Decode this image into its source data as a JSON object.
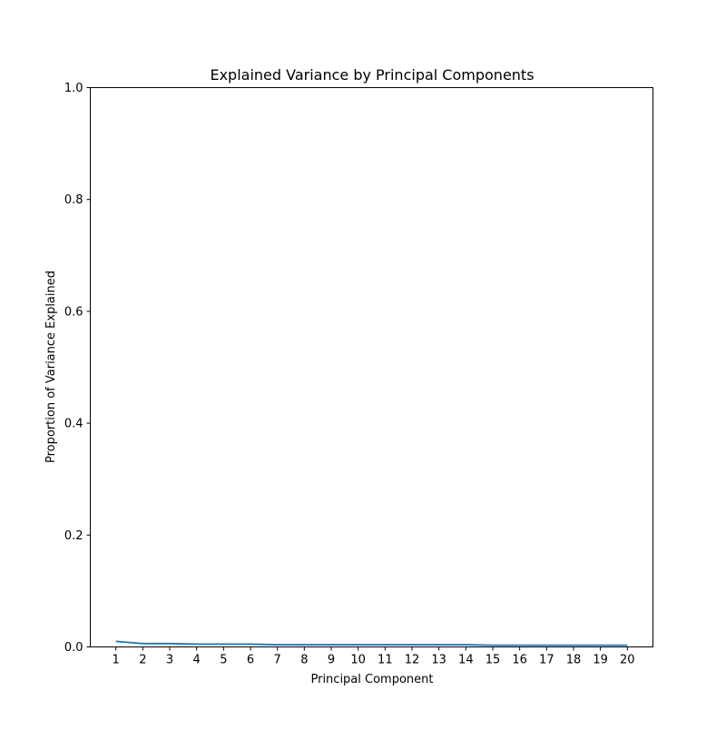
{
  "chart_data": {
    "type": "line",
    "title": "Explained Variance by Principal Components",
    "xlabel": "Principal Component",
    "ylabel": "Proportion of Variance Explained",
    "x": [
      1,
      2,
      3,
      4,
      5,
      6,
      7,
      8,
      9,
      10,
      11,
      12,
      13,
      14,
      15,
      16,
      17,
      18,
      19,
      20
    ],
    "x_tick_labels": [
      "1",
      "2",
      "3",
      "4",
      "5",
      "6",
      "7",
      "8",
      "9",
      "10",
      "11",
      "12",
      "13",
      "14",
      "15",
      "16",
      "17",
      "18",
      "19",
      "20"
    ],
    "xlim": [
      0.05,
      20.95
    ],
    "y_ticks": [
      0.0,
      0.2,
      0.4,
      0.6,
      0.8,
      1.0
    ],
    "y_tick_labels": [
      "0.0",
      "0.2",
      "0.4",
      "0.6",
      "0.8",
      "1.0"
    ],
    "ylim": [
      0.0,
      1.0
    ],
    "grid": false,
    "series": [
      {
        "color": "#1f77b4",
        "values": [
          0.01,
          0.006,
          0.006,
          0.005,
          0.005,
          0.005,
          0.004,
          0.004,
          0.004,
          0.004,
          0.004,
          0.004,
          0.004,
          0.004,
          0.003,
          0.003,
          0.003,
          0.003,
          0.003,
          0.003
        ]
      }
    ]
  }
}
